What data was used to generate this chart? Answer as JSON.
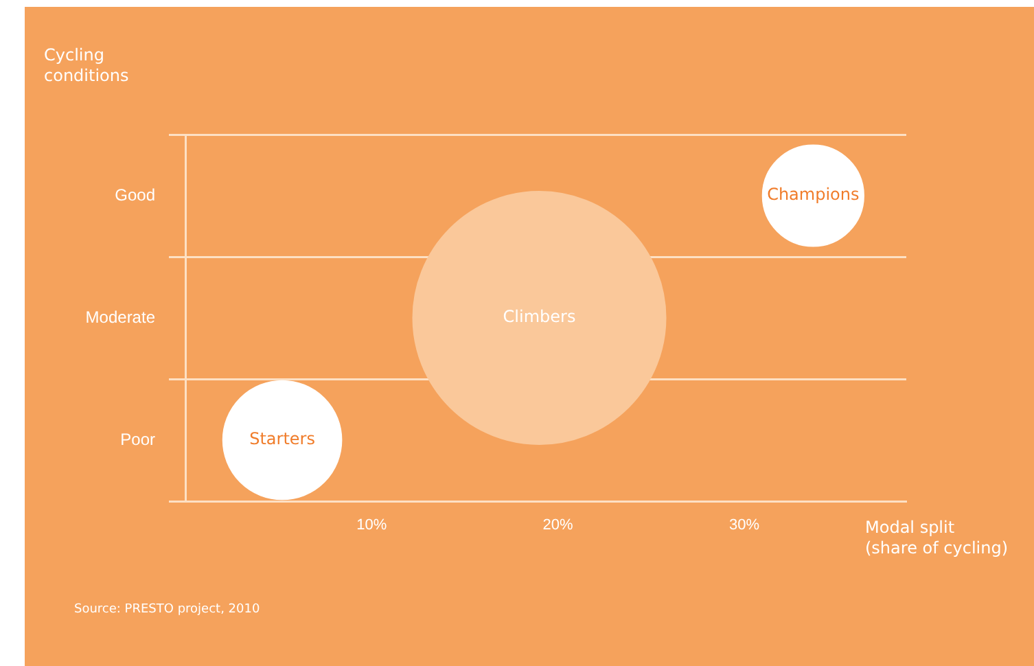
{
  "chart_data": {
    "type": "bubble",
    "orientation": "horizontal",
    "ylabel": "Cycling\nconditions",
    "xlabel": "Modal split\n(share of cycling)",
    "categories": [
      "Good",
      "Moderate",
      "Poor"
    ],
    "xlim": [
      0,
      38.7
    ],
    "xticks": [
      {
        "value": 10,
        "label": "10%"
      },
      {
        "value": 20,
        "label": "20%"
      },
      {
        "value": 30,
        "label": "30%"
      }
    ],
    "series": [
      {
        "name": "Starters",
        "color": "#ffffff",
        "values": [
          null,
          null,
          5.2
        ],
        "sizes": [
          null,
          null,
          0.22
        ]
      },
      {
        "name": "Climbers",
        "color": "#fac89a",
        "values": [
          null,
          19,
          null
        ],
        "sizes": [
          null,
          1,
          null
        ]
      },
      {
        "name": "Champions",
        "color": "#ffffff",
        "values": [
          33.7,
          null,
          null
        ],
        "sizes": [
          0.16,
          null,
          null
        ]
      }
    ],
    "grid": "y",
    "legend": false,
    "annotations": [
      "Source: PRESTO project, 2010"
    ]
  }
}
